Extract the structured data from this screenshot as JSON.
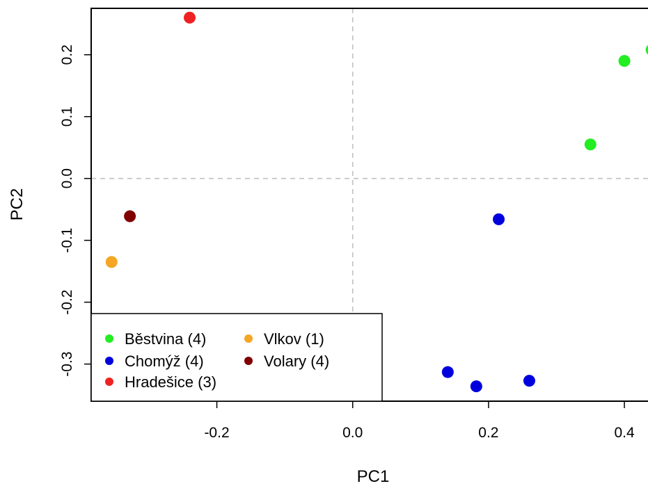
{
  "chart_data": {
    "type": "scatter",
    "title": "",
    "xlabel": "PC1",
    "ylabel": "PC2",
    "xlim": [
      -0.385,
      0.445
    ],
    "ylim": [
      -0.36,
      0.275
    ],
    "x_ticks": [
      -0.2,
      0.0,
      0.2,
      0.4
    ],
    "x_tick_labels": [
      "-0.2",
      "0.0",
      "0.2",
      "0.4"
    ],
    "y_ticks": [
      -0.3,
      -0.2,
      -0.1,
      0.0,
      0.1,
      0.2
    ],
    "y_tick_labels": [
      "-0.3",
      "-0.2",
      "-0.1",
      "0.0",
      "0.1",
      "0.2"
    ],
    "reference_lines": {
      "x": 0.0,
      "y": 0.0,
      "style": "dashed",
      "color": "#c0c0c0"
    },
    "legend_position": "bottom-left",
    "series": [
      {
        "name": "Běstvina (4)",
        "color": "#22ee22",
        "points": [
          [
            0.35,
            0.055
          ],
          [
            0.4,
            0.19
          ],
          [
            0.44,
            0.208
          ]
        ]
      },
      {
        "name": "Chomýž (4)",
        "color": "#0000dd",
        "points": [
          [
            0.215,
            -0.066
          ],
          [
            0.14,
            -0.313
          ],
          [
            0.182,
            -0.336
          ],
          [
            0.26,
            -0.327
          ]
        ]
      },
      {
        "name": "Hradešice (3)",
        "color": "#ee2222",
        "points": [
          [
            -0.24,
            0.26
          ]
        ]
      },
      {
        "name": "Vlkov (1)",
        "color": "#f5a623",
        "points": [
          [
            -0.355,
            -0.135
          ]
        ]
      },
      {
        "name": "Volary (4)",
        "color": "#800000",
        "points": [
          [
            -0.328,
            -0.061
          ]
        ]
      }
    ]
  }
}
